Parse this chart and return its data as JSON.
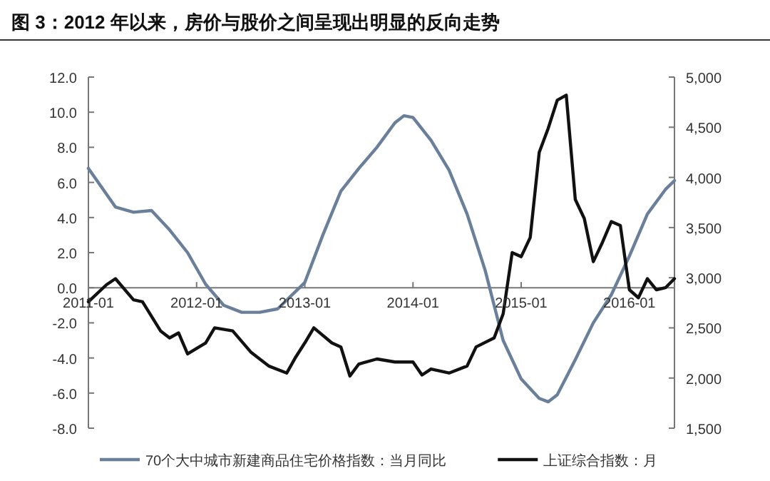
{
  "chart_data": {
    "type": "line",
    "title": "图 3：2012 年以来，房价与股价之间呈现出明显的反向走势",
    "x": [
      "2011-01",
      "2011-04",
      "2011-06",
      "2011-08",
      "2011-10",
      "2011-12",
      "2012-02",
      "2012-04",
      "2012-06",
      "2012-08",
      "2012-10",
      "2012-12",
      "2013-01",
      "2013-03",
      "2013-05",
      "2013-07",
      "2013-09",
      "2013-11",
      "2013-12",
      "2014-01",
      "2014-03",
      "2014-05",
      "2014-07",
      "2014-09",
      "2014-11",
      "2015-01",
      "2015-03",
      "2015-04",
      "2015-05",
      "2015-07",
      "2015-09",
      "2015-11",
      "2016-01",
      "2016-03",
      "2016-05",
      "2016-06"
    ],
    "series": [
      {
        "name": "70个大中城市新建商品住宅价格指数：当月同比",
        "color": "#6a7f99",
        "values": [
          6.8,
          4.6,
          4.3,
          4.4,
          3.3,
          2.0,
          0.2,
          -1.0,
          -1.4,
          -1.4,
          -1.2,
          -0.2,
          0.3,
          3.0,
          5.5,
          6.8,
          8.0,
          9.4,
          9.8,
          9.7,
          8.4,
          6.7,
          4.2,
          1.0,
          -3.0,
          -5.2,
          -6.3,
          -6.5,
          -6.1,
          -4.1,
          -2.0,
          -0.4,
          1.8,
          4.2,
          5.6,
          6.1
        ]
      },
      {
        "name": "上证综合指数：月",
        "color": "#111111",
        "axis": "y2",
        "x": [
          "2011-01",
          "2011-03",
          "2011-04",
          "2011-06",
          "2011-07",
          "2011-09",
          "2011-10",
          "2011-11",
          "2011-12",
          "2012-02",
          "2012-03",
          "2012-05",
          "2012-07",
          "2012-09",
          "2012-11",
          "2012-12",
          "2013-01",
          "2013-02",
          "2013-04",
          "2013-05",
          "2013-06",
          "2013-07",
          "2013-09",
          "2013-11",
          "2014-01",
          "2014-02",
          "2014-03",
          "2014-05",
          "2014-07",
          "2014-08",
          "2014-10",
          "2014-11",
          "2014-12",
          "2015-01",
          "2015-02",
          "2015-03",
          "2015-04",
          "2015-05",
          "2015-06",
          "2015-07",
          "2015-08",
          "2015-09",
          "2015-10",
          "2015-11",
          "2015-12",
          "2016-01",
          "2016-02",
          "2016-03",
          "2016-04",
          "2016-05",
          "2016-06"
        ],
        "values": [
          2760,
          2930,
          2990,
          2780,
          2760,
          2470,
          2400,
          2450,
          2240,
          2350,
          2500,
          2470,
          2260,
          2120,
          2050,
          2210,
          2350,
          2500,
          2350,
          2310,
          2020,
          2140,
          2190,
          2160,
          2160,
          2030,
          2090,
          2050,
          2120,
          2310,
          2400,
          2640,
          3250,
          3210,
          3400,
          4250,
          4490,
          4770,
          4820,
          3780,
          3590,
          3160,
          3350,
          3560,
          3520,
          2880,
          2800,
          2990,
          2880,
          2900,
          2990
        ]
      }
    ],
    "xlim": [
      "2011-01",
      "2016-06"
    ],
    "xticks": [
      "2011-01",
      "2012-01",
      "2013-01",
      "2014-01",
      "2015-01",
      "2016-01"
    ],
    "ylim": [
      -8,
      12
    ],
    "yticks": [
      {
        "value": -8,
        "label": "-8.0"
      },
      {
        "value": -6,
        "label": "-6.0"
      },
      {
        "value": -4,
        "label": "-4.0"
      },
      {
        "value": -2,
        "label": "-2.0"
      },
      {
        "value": 0,
        "label": "0.0"
      },
      {
        "value": 2,
        "label": "2.0"
      },
      {
        "value": 4,
        "label": "4.0"
      },
      {
        "value": 6,
        "label": "6.0"
      },
      {
        "value": 8,
        "label": "8.0"
      },
      {
        "value": 10,
        "label": "10.0"
      },
      {
        "value": 12,
        "label": "12.0"
      }
    ],
    "y2lim": [
      1500,
      5000
    ],
    "y2ticks": [
      {
        "value": 1500,
        "label": "1,500"
      },
      {
        "value": 2000,
        "label": "2,000"
      },
      {
        "value": 2500,
        "label": "2,500"
      },
      {
        "value": 3000,
        "label": "3,000"
      },
      {
        "value": 3500,
        "label": "3,500"
      },
      {
        "value": 4000,
        "label": "4,000"
      },
      {
        "value": 4500,
        "label": "4,500"
      },
      {
        "value": 5000,
        "label": "5,000"
      }
    ],
    "legend": "bottom"
  }
}
